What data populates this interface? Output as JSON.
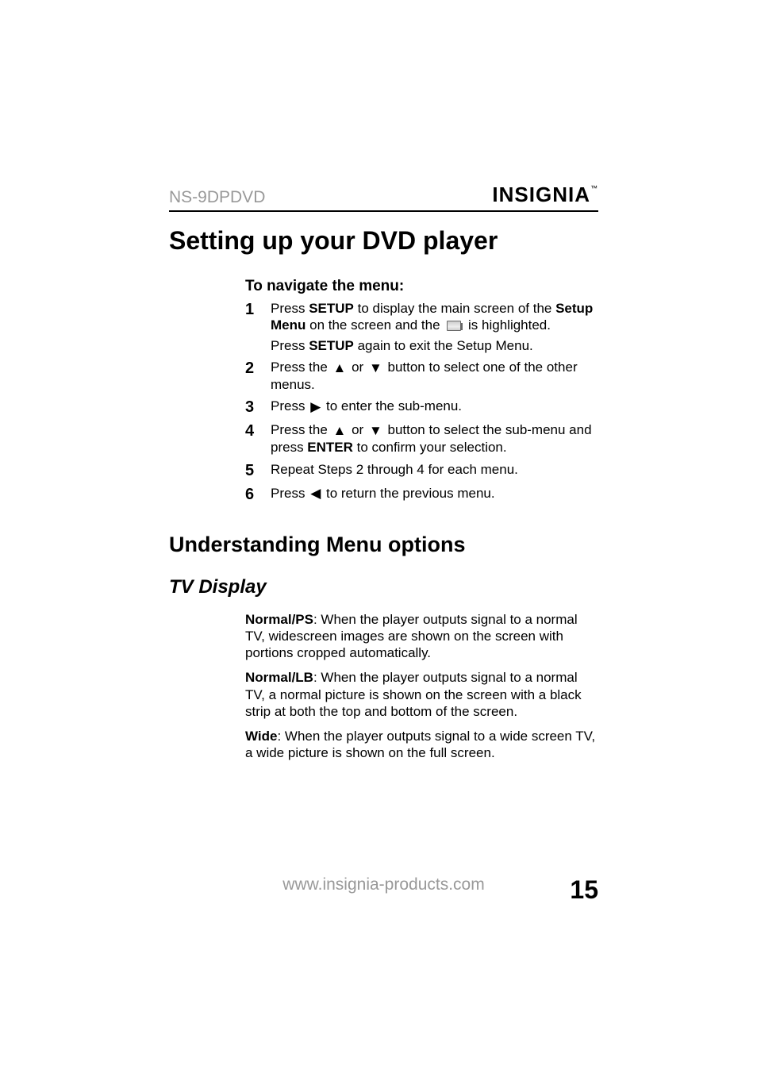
{
  "header": {
    "model": "NS-9DPDVD",
    "brand": "INSIGNIA",
    "brand_tm": "™"
  },
  "main": {
    "title": "Setting up your DVD player",
    "nav_heading": "To navigate the menu:",
    "steps": [
      {
        "num": "1",
        "parts": [
          "Press ",
          {
            "bold": "SETUP"
          },
          " to display the main screen of the ",
          {
            "bold": "Setup Menu"
          },
          " on the screen and the ",
          {
            "icon": "screen"
          },
          " is highlighted."
        ],
        "sub": [
          "Press ",
          {
            "bold": "SETUP"
          },
          " again to exit the Setup Menu."
        ]
      },
      {
        "num": "2",
        "parts": [
          "Press the ",
          {
            "icon": "up"
          },
          " or ",
          {
            "icon": "down"
          },
          " button to select one of the other menus."
        ]
      },
      {
        "num": "3",
        "parts": [
          "Press ",
          {
            "icon": "right"
          },
          " to enter the sub-menu."
        ]
      },
      {
        "num": "4",
        "parts": [
          "Press the ",
          {
            "icon": "up"
          },
          " or ",
          {
            "icon": "down"
          },
          " button to select the sub-menu and press ",
          {
            "bold": "ENTER"
          },
          " to confirm your selection."
        ]
      },
      {
        "num": "5",
        "parts": [
          "Repeat Steps 2 through 4 for each menu."
        ]
      },
      {
        "num": "6",
        "parts": [
          "Press ",
          {
            "icon": "left"
          },
          " to return the previous menu."
        ]
      }
    ],
    "section_title": "Understanding Menu options",
    "subsection_title": "TV Display",
    "paragraphs": [
      [
        {
          "bold": "Normal/PS"
        },
        ": When the player outputs signal to a normal TV, widescreen images are shown on the screen with portions cropped automatically."
      ],
      [
        {
          "bold": "Normal/LB"
        },
        ": When the player outputs signal to a normal TV, a normal picture is shown on the screen with a black strip at both the top and bottom of the screen."
      ],
      [
        {
          "bold": "Wide"
        },
        ": When the player outputs signal to a wide screen TV, a wide picture is shown on the full screen."
      ]
    ]
  },
  "footer": {
    "url": "www.insignia-products.com",
    "page_number": "15"
  },
  "icons": {
    "up": "▲",
    "down": "▼",
    "right": "▶",
    "left": "◀"
  }
}
